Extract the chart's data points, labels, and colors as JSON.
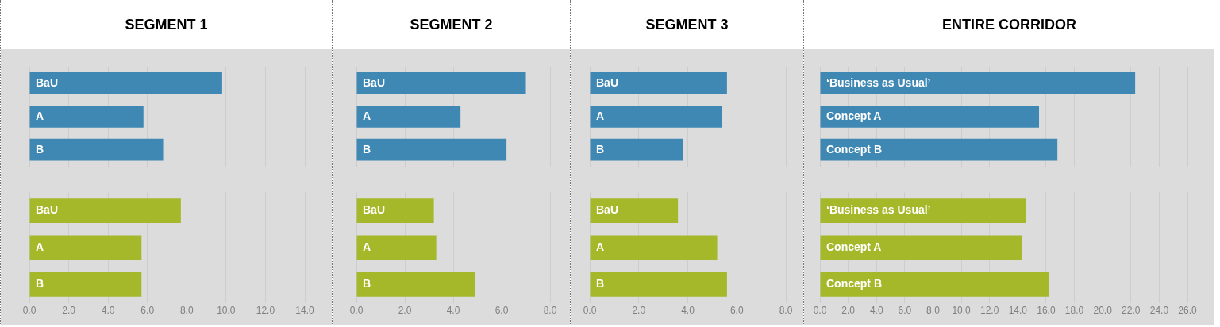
{
  "chart_data": [
    {
      "type": "bar",
      "orientation": "horizontal",
      "title": "SEGMENT 1",
      "categories": [
        "BaU",
        "A",
        "B"
      ],
      "values": [
        9.8,
        5.8,
        6.8
      ],
      "color": "#3f88b4",
      "xlim": [
        0,
        14
      ],
      "xticks": [
        0,
        2,
        4,
        6,
        8,
        10,
        12,
        14
      ],
      "grid": "x",
      "tick_labels": "y"
    },
    {
      "type": "bar",
      "orientation": "horizontal",
      "categories": [
        "BaU",
        "A",
        "B"
      ],
      "values": [
        7.7,
        5.7,
        5.7
      ],
      "color": "#a5b829",
      "xlim": [
        0,
        14
      ],
      "xticks": [
        {
          "value": 0,
          "label": "0.0"
        },
        {
          "value": 2,
          "label": "2.0"
        },
        {
          "value": 4,
          "label": "4.0"
        },
        {
          "value": 6,
          "label": "6.0"
        },
        {
          "value": 8,
          "label": "8.0"
        },
        {
          "value": 10,
          "label": "10.0"
        },
        {
          "value": 12,
          "label": "12.0"
        },
        {
          "value": 14,
          "label": "14.0"
        }
      ],
      "grid": "x"
    },
    {
      "type": "bar",
      "orientation": "horizontal",
      "title": "SEGMENT 2",
      "categories": [
        "BaU",
        "A",
        "B"
      ],
      "values": [
        7.0,
        4.3,
        6.2
      ],
      "color": "#3f88b4",
      "xlim": [
        0,
        8
      ],
      "xticks": [
        0,
        2,
        4,
        6,
        8
      ],
      "grid": "x",
      "tick_labels": "y"
    },
    {
      "type": "bar",
      "orientation": "horizontal",
      "categories": [
        "BaU",
        "A",
        "B"
      ],
      "values": [
        3.2,
        3.3,
        4.9
      ],
      "color": "#a5b829",
      "xlim": [
        0,
        8
      ],
      "xticks": [
        {
          "value": 0,
          "label": "0.0"
        },
        {
          "value": 2,
          "label": "2.0"
        },
        {
          "value": 4,
          "label": "4.0"
        },
        {
          "value": 6,
          "label": "6.0"
        },
        {
          "value": 8,
          "label": "8.0"
        }
      ],
      "grid": "x"
    },
    {
      "type": "bar",
      "orientation": "horizontal",
      "title": "SEGMENT 3",
      "categories": [
        "BaU",
        "A",
        "B"
      ],
      "values": [
        5.6,
        5.4,
        3.8
      ],
      "color": "#3f88b4",
      "xlim": [
        0,
        8
      ],
      "xticks": [
        0,
        2,
        4,
        6,
        8
      ],
      "grid": "x",
      "tick_labels": "y"
    },
    {
      "type": "bar",
      "orientation": "horizontal",
      "categories": [
        "BaU",
        "A",
        "B"
      ],
      "values": [
        3.6,
        5.2,
        5.6
      ],
      "color": "#a5b829",
      "xlim": [
        0,
        8
      ],
      "xticks": [
        {
          "value": 0,
          "label": "0.0"
        },
        {
          "value": 2,
          "label": "2.0"
        },
        {
          "value": 4,
          "label": "4.0"
        },
        {
          "value": 6,
          "label": "6.0"
        },
        {
          "value": 8,
          "label": "8.0"
        }
      ],
      "grid": "x"
    },
    {
      "type": "bar",
      "orientation": "horizontal",
      "title": "ENTIRE CORRIDOR",
      "categories": [
        "‘Business as Usual’",
        "Concept A",
        "Concept B"
      ],
      "values": [
        22.3,
        15.5,
        16.8
      ],
      "color": "#3f88b4",
      "xlim": [
        0,
        26
      ],
      "xticks": [
        0,
        2,
        4,
        6,
        8,
        10,
        12,
        14,
        16,
        18,
        20,
        22,
        24,
        26
      ],
      "grid": "x",
      "tick_labels": "y"
    },
    {
      "type": "bar",
      "orientation": "horizontal",
      "categories": [
        "‘Business as Usual’",
        "Concept A",
        "Concept B"
      ],
      "values": [
        14.6,
        14.3,
        16.2
      ],
      "color": "#a5b829",
      "xlim": [
        0,
        26
      ],
      "xticks": [
        {
          "value": 0,
          "label": "0.0"
        },
        {
          "value": 2,
          "label": "2.0"
        },
        {
          "value": 4,
          "label": "4.0"
        },
        {
          "value": 6,
          "label": "6.0"
        },
        {
          "value": 8,
          "label": "8.0"
        },
        {
          "value": 10,
          "label": "10.0"
        },
        {
          "value": 12,
          "label": "12.0"
        },
        {
          "value": 14,
          "label": "14.0"
        },
        {
          "value": 16,
          "label": "16.0"
        },
        {
          "value": 18,
          "label": "18.0"
        },
        {
          "value": 20,
          "label": "20.0"
        },
        {
          "value": 22,
          "label": "22.0"
        },
        {
          "value": 24,
          "label": "24.0"
        },
        {
          "value": 26,
          "label": "26.0"
        }
      ],
      "grid": "x"
    }
  ]
}
